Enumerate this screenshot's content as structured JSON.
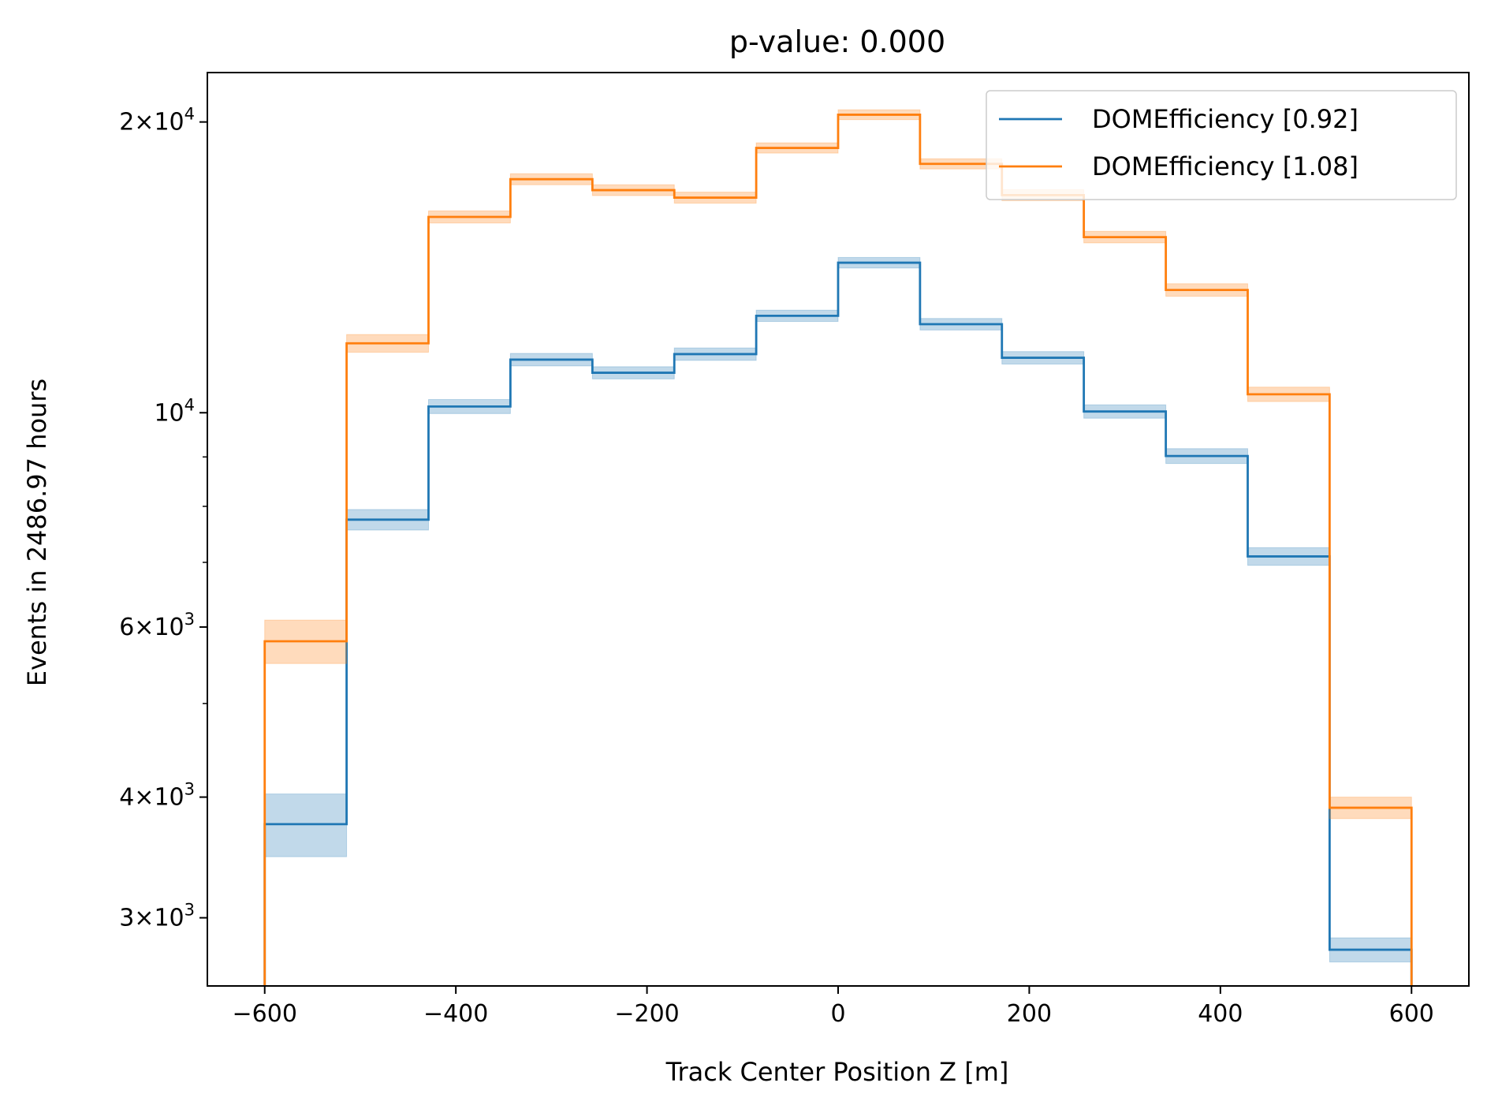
{
  "chart_data": {
    "type": "line",
    "title": "p-value: 0.000",
    "xlabel": "Track Center Position Z [m]",
    "ylabel": "Events in 2486.97 hours",
    "xlim": [
      -660,
      660
    ],
    "ylim": [
      2550,
      22500
    ],
    "yscale": "log",
    "legend_position": "top-right",
    "x_ticks": [
      -600,
      -400,
      -200,
      0,
      200,
      400,
      600
    ],
    "x_tick_labels": [
      "−600",
      "−400",
      "−200",
      "0",
      "200",
      "400",
      "600"
    ],
    "y_ticks": [
      {
        "value": 3000,
        "mantissa": "3",
        "exp": "3"
      },
      {
        "value": 4000,
        "mantissa": "4",
        "exp": "3"
      },
      {
        "value": 6000,
        "mantissa": "6",
        "exp": "3"
      },
      {
        "value": 10000,
        "mantissa": "",
        "exp": "4"
      },
      {
        "value": 20000,
        "mantissa": "2",
        "exp": "4"
      }
    ],
    "y_minor_ticks": [
      5000,
      7000,
      8000,
      9000
    ],
    "bin_edges": [
      -600,
      -514.3,
      -428.6,
      -342.9,
      -257.1,
      -171.4,
      -85.7,
      0,
      85.7,
      171.4,
      257.1,
      342.9,
      428.6,
      514.3,
      600
    ],
    "series": [
      {
        "name": "DOMEfficiency [0.92]",
        "color": "#1f77b4",
        "values": [
          3750,
          7750,
          10150,
          11350,
          11000,
          11500,
          12600,
          14300,
          12350,
          11400,
          10030,
          9020,
          7100,
          2780
        ],
        "errors": [
          280,
          190,
          170,
          170,
          160,
          170,
          170,
          180,
          170,
          170,
          160,
          160,
          150,
          80
        ]
      },
      {
        "name": "DOMEfficiency [1.08]",
        "color": "#ff7f0e",
        "values": [
          5800,
          11800,
          15950,
          17450,
          17000,
          16700,
          18800,
          20350,
          18100,
          16800,
          15200,
          13400,
          10450,
          3900
        ],
        "errors": [
          300,
          250,
          230,
          230,
          220,
          220,
          230,
          240,
          220,
          220,
          210,
          200,
          180,
          100
        ]
      }
    ]
  }
}
